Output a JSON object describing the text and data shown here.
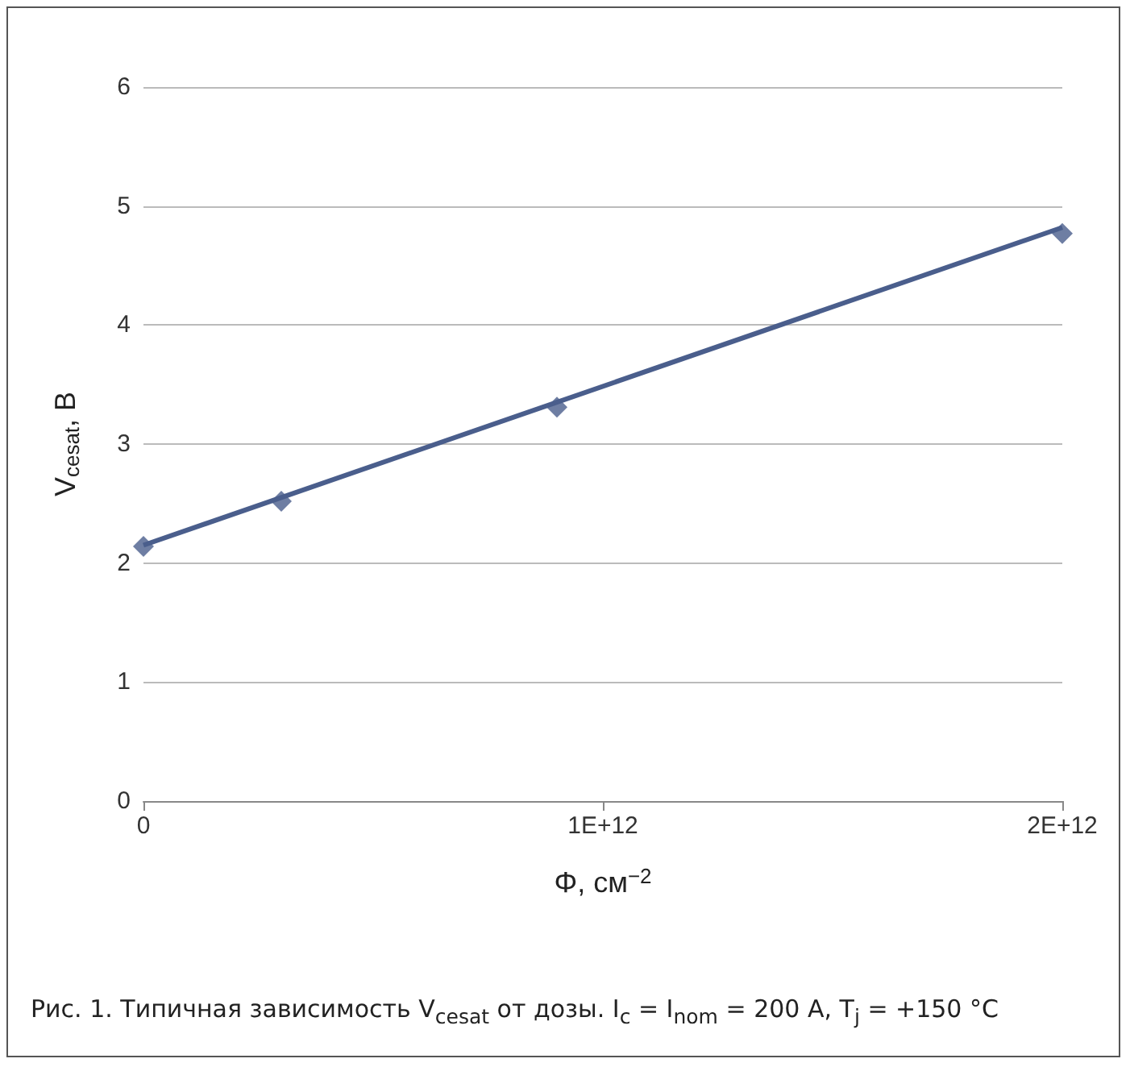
{
  "chart_data": {
    "type": "scatter",
    "xlabel": "Φ, см$^{−2}$",
    "ylabel": "V$_{cesat}$, В",
    "annotations": [
      "Рис. 1. Типичная зависимость V$_{cesat}$ от дозы. I$_{c}$ = I$_{nom}$ = 200 А, T$_{j}$ = +150 °C"
    ],
    "series": [
      {
        "color": "#4a5e8c",
        "marker": "diamond",
        "x": [
          0,
          300000000000,
          900000000000,
          2000000000000
        ],
        "values": [
          2.14,
          2.52,
          3.31,
          4.77
        ]
      },
      {
        "type": "line",
        "color": "#4a5e8c",
        "marker": "none",
        "line_style": "solid",
        "x": [
          0,
          2000000000000
        ],
        "values": [
          2.15,
          4.82
        ]
      }
    ],
    "xlim": [
      0,
      2000000000000
    ],
    "xticks": [
      0,
      {
        "value": 1000000000000,
        "label": "1E+12"
      },
      {
        "value": 2000000000000,
        "label": "2E+12"
      }
    ],
    "ylim": [
      0,
      6
    ],
    "yticks": [
      0,
      1,
      2,
      3,
      4,
      5,
      6
    ],
    "grid": "y"
  }
}
